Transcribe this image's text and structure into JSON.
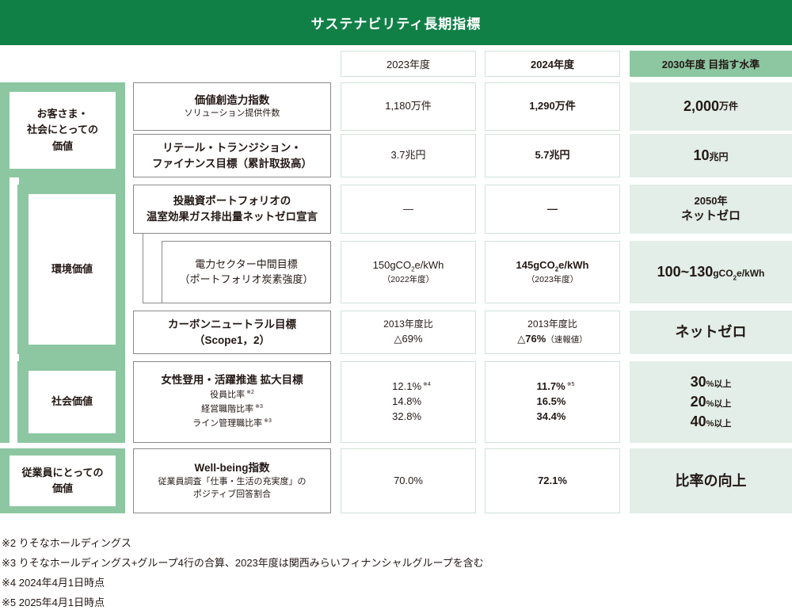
{
  "title": "サステナビリティ長期指標",
  "columns": {
    "y2023": "2023年度",
    "y2024": "2024年度",
    "target": "2030年度 目指す水準"
  },
  "categories": {
    "customer": "お客さま・社会にとっての価値",
    "customer_lines": [
      "お客さま・",
      "社会にとっての",
      "価値"
    ],
    "environment": "環境価値",
    "social": "社会価値",
    "employee_lines": [
      "従業員にとっての",
      "価値"
    ]
  },
  "rows": {
    "value_creation": {
      "name": "価値創造力指数",
      "sub": "ソリューション提供件数",
      "v2023": "1,180万件",
      "v2024": "1,290万件",
      "target_num": "2,000",
      "target_unit": "万件"
    },
    "retail_transition": {
      "name_line1": "リテール・トランジション・",
      "name_line2": "ファイナンス目標（累計取扱高）",
      "v2023": "3.7兆円",
      "v2024": "5.7兆円",
      "target_num": "10",
      "target_unit": "兆円"
    },
    "portfolio_netzero": {
      "name_line1": "投融資ポートフォリオの",
      "name_line2": "温室効果ガス排出量ネットゼロ宣言",
      "v2023": "—",
      "v2024": "—",
      "target_line1": "2050年",
      "target_line2": "ネットゼロ"
    },
    "power_sector": {
      "name_line1": "電力セクター中間目標",
      "name_line2": "（ポートフォリオ炭素強度）",
      "v2023_a": "150gCO",
      "v2023_sub": "2",
      "v2023_b": "e/kWh",
      "v2023_note": "（2022年度）",
      "v2024_a": "145gCO",
      "v2024_sub": "2",
      "v2024_b": "e/kWh",
      "v2024_note": "（2023年度）",
      "target_num": "100~130",
      "target_unit_a": "gCO",
      "target_unit_sub": "2",
      "target_unit_b": "e/kWh"
    },
    "carbon_neutral": {
      "name_line1": "カーボンニュートラル目標",
      "name_line2": "（Scope1，2）",
      "v2023_line1": "2013年度比",
      "v2023_line2": "△69%",
      "v2024_line1": "2013年度比",
      "v2024_line2": "△76%",
      "v2024_note": "（速報値）",
      "target": "ネットゼロ"
    },
    "women": {
      "name": "女性登用・活躍推進 拡大目標",
      "subs": [
        {
          "label": "役員比率",
          "mark": "※2"
        },
        {
          "label": "経営職階比率",
          "mark": "※3"
        },
        {
          "label": "ライン管理職比率",
          "mark": "※3"
        }
      ],
      "v2023": [
        "12.1%",
        "14.8%",
        "32.8%"
      ],
      "v2023_mark": "※4",
      "v2024": [
        "11.7%",
        "16.5%",
        "34.4%"
      ],
      "v2024_mark": "※5",
      "targets": [
        {
          "num": "30",
          "unit": "%以上"
        },
        {
          "num": "20",
          "unit": "%以上"
        },
        {
          "num": "40",
          "unit": "%以上"
        }
      ]
    },
    "wellbeing": {
      "name": "Well-being指数",
      "sub_line1": "従業員調査「仕事・生活の充実度」の",
      "sub_line2": "ポジティブ回答割合",
      "v2023": "70.0%",
      "v2024": "72.1%",
      "target": "比率の向上"
    }
  },
  "footnotes": [
    "※2 りそなホールディングス",
    "※3 りそなホールディングス+グループ4行の合算、2023年度は関西みらいフィナンシャルグループを含む",
    "※4 2024年4月1日時点",
    "※5 2025年4月1日時点"
  ],
  "colors": {
    "title_bg": "#118047",
    "band": "#8cc7a2",
    "target_cell": "#e2eee7"
  }
}
